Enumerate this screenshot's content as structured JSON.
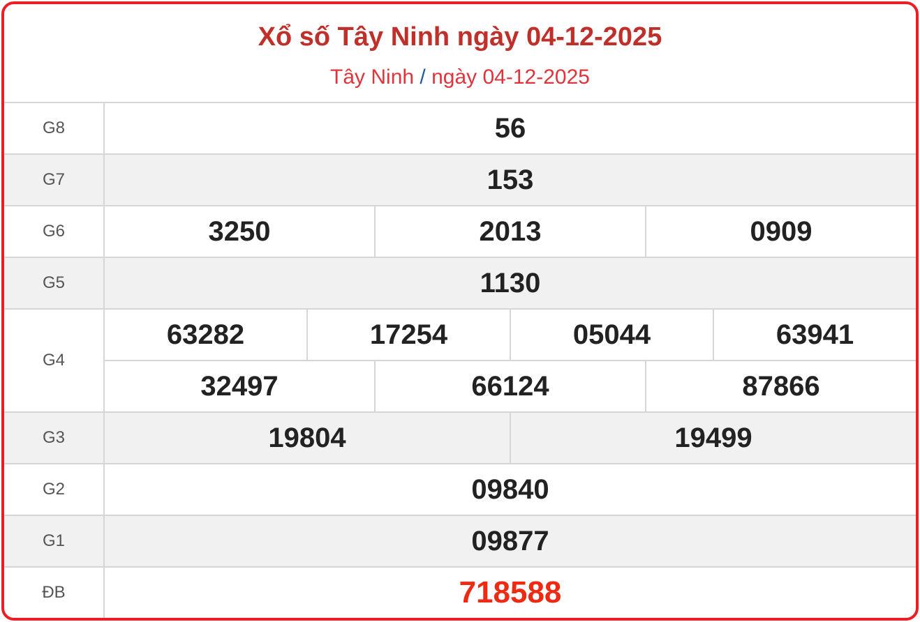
{
  "header": {
    "title": "Xổ số Tây Ninh ngày 04-12-2025",
    "breadcrumb": {
      "province": "Tây Ninh",
      "separator": "/",
      "date": "ngày 04-12-2025"
    }
  },
  "colors": {
    "border": "#ee1c25",
    "title": "#c0302a",
    "special": "#ee2a12"
  },
  "prizes": [
    {
      "label": "G8",
      "lines": [
        [
          "56"
        ]
      ]
    },
    {
      "label": "G7",
      "lines": [
        [
          "153"
        ]
      ]
    },
    {
      "label": "G6",
      "lines": [
        [
          "3250",
          "2013",
          "0909"
        ]
      ]
    },
    {
      "label": "G5",
      "lines": [
        [
          "1130"
        ]
      ]
    },
    {
      "label": "G4",
      "lines": [
        [
          "63282",
          "17254",
          "05044",
          "63941"
        ],
        [
          "32497",
          "66124",
          "87866"
        ]
      ]
    },
    {
      "label": "G3",
      "lines": [
        [
          "19804",
          "19499"
        ]
      ]
    },
    {
      "label": "G2",
      "lines": [
        [
          "09840"
        ]
      ]
    },
    {
      "label": "G1",
      "lines": [
        [
          "09877"
        ]
      ]
    },
    {
      "label": "ĐB",
      "lines": [
        [
          "718588"
        ]
      ]
    }
  ]
}
